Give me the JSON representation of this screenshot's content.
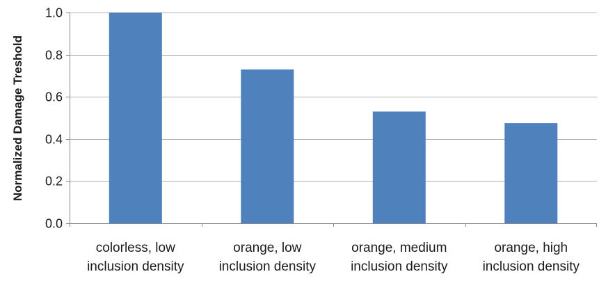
{
  "chart_data": {
    "type": "bar",
    "title": "",
    "xlabel": "",
    "ylabel": "Normalized Damage Treshold",
    "categories": [
      [
        "colorless, low",
        "inclusion density"
      ],
      [
        "orange, low",
        "inclusion density"
      ],
      [
        "orange, medium",
        "inclusion density"
      ],
      [
        "orange, high",
        "inclusion density"
      ]
    ],
    "values": [
      1.0,
      0.73,
      0.53,
      0.475
    ],
    "ylim": [
      0,
      1.0
    ],
    "yticks": [
      "0.0",
      "0.2",
      "0.4",
      "0.6",
      "0.8",
      "1.0"
    ],
    "grid": true,
    "legend": "none",
    "colors": {
      "bar": "#4f81bd",
      "grid": "#b3b3b3",
      "axis": "#888888"
    }
  }
}
